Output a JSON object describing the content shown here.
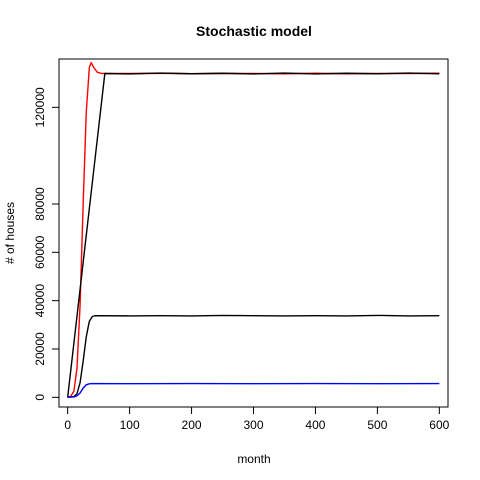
{
  "chart_data": {
    "type": "line",
    "title": "Stochastic model",
    "xlabel": "month",
    "ylabel": "# of houses",
    "xlim": [
      -14,
      614
    ],
    "ylim": [
      -4000,
      140000
    ],
    "xticks": [
      0,
      100,
      200,
      300,
      400,
      500,
      600
    ],
    "yticks": [
      0,
      20000,
      40000,
      60000,
      80000,
      120000
    ],
    "grid": false,
    "legend": "none",
    "series": [
      {
        "color": "#ff0000",
        "points": [
          [
            0,
            0
          ],
          [
            5,
            400
          ],
          [
            10,
            2500
          ],
          [
            15,
            12000
          ],
          [
            20,
            38000
          ],
          [
            25,
            80000
          ],
          [
            30,
            118000
          ],
          [
            35,
            136500
          ],
          [
            38,
            138500
          ],
          [
            42,
            136500
          ],
          [
            48,
            134500
          ],
          [
            55,
            134000
          ],
          [
            100,
            134000
          ],
          [
            150,
            134100
          ],
          [
            200,
            133900
          ],
          [
            250,
            134000
          ],
          [
            300,
            134000
          ],
          [
            350,
            133900
          ],
          [
            400,
            134100
          ],
          [
            450,
            133900
          ],
          [
            500,
            134000
          ],
          [
            550,
            134000
          ],
          [
            600,
            134100
          ]
        ]
      },
      {
        "color": "#000000",
        "points": [
          [
            0,
            0
          ],
          [
            60,
            134000
          ],
          [
            100,
            133800
          ],
          [
            150,
            134200
          ],
          [
            200,
            133900
          ],
          [
            250,
            134100
          ],
          [
            300,
            133800
          ],
          [
            350,
            134200
          ],
          [
            400,
            133800
          ],
          [
            450,
            134100
          ],
          [
            500,
            133900
          ],
          [
            550,
            134200
          ],
          [
            600,
            133900
          ]
        ]
      },
      {
        "color": "#000000",
        "points": [
          [
            0,
            0
          ],
          [
            10,
            300
          ],
          [
            15,
            1500
          ],
          [
            20,
            6000
          ],
          [
            25,
            15000
          ],
          [
            30,
            25000
          ],
          [
            35,
            31500
          ],
          [
            40,
            33500
          ],
          [
            45,
            33800
          ],
          [
            100,
            33700
          ],
          [
            150,
            33800
          ],
          [
            200,
            33700
          ],
          [
            250,
            33900
          ],
          [
            300,
            33800
          ],
          [
            350,
            33700
          ],
          [
            400,
            33800
          ],
          [
            450,
            33700
          ],
          [
            500,
            33900
          ],
          [
            550,
            33700
          ],
          [
            600,
            33800
          ]
        ]
      },
      {
        "color": "#0000ff",
        "points": [
          [
            0,
            0
          ],
          [
            10,
            150
          ],
          [
            15,
            600
          ],
          [
            20,
            1800
          ],
          [
            25,
            3800
          ],
          [
            30,
            5200
          ],
          [
            35,
            5600
          ],
          [
            40,
            5700
          ],
          [
            100,
            5650
          ],
          [
            200,
            5700
          ],
          [
            300,
            5650
          ],
          [
            400,
            5700
          ],
          [
            500,
            5650
          ],
          [
            600,
            5700
          ]
        ]
      }
    ]
  }
}
